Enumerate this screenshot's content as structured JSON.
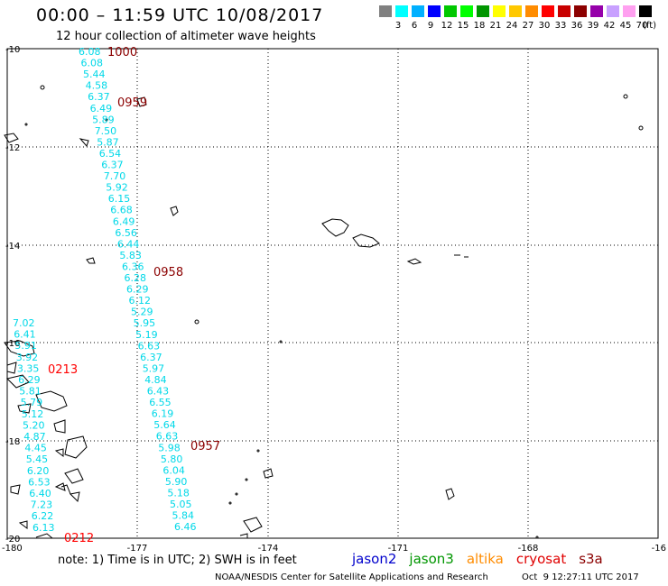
{
  "header": {
    "title": "00:00 – 11:59 UTC 10/08/2017",
    "subtitle": "12 hour collection of altimeter wave heights"
  },
  "colorbar": {
    "colors": [
      "#808080",
      "#00ffff",
      "#00b0ff",
      "#0000ff",
      "#00c800",
      "#00ff00",
      "#009600",
      "#ffff00",
      "#ffc800",
      "#ff8c00",
      "#ff0000",
      "#c80000",
      "#8c0000",
      "#9600aa",
      "#c8a0ff",
      "#ffa0f0",
      "#000000"
    ],
    "labels": [
      "3",
      "6",
      "9",
      "12",
      "15",
      "18",
      "21",
      "24",
      "27",
      "30",
      "33",
      "36",
      "39",
      "42",
      "45",
      "70"
    ],
    "unit": "(ft)"
  },
  "axes": {
    "lat_labels": [
      "-10",
      "-12",
      "-14",
      "-16",
      "-18",
      "-20"
    ],
    "lon_labels": [
      "-180",
      "-177",
      "-174",
      "-171",
      "-168",
      "-16"
    ]
  },
  "track_labels": [
    {
      "text": "1000",
      "color": "#8b0000"
    },
    {
      "text": "0959",
      "color": "#8b0000"
    },
    {
      "text": "0958",
      "color": "#8b0000"
    },
    {
      "text": "0957",
      "color": "#8b0000"
    },
    {
      "text": "0213",
      "color": "#ff0000"
    },
    {
      "text": "0212",
      "color": "#ff0000"
    }
  ],
  "wave_colors": {
    "cyan": "#00d8e8"
  },
  "track_a": [
    "6.08",
    "6.08",
    "5.44",
    "4.58",
    "6.37",
    "6.49",
    "5.89",
    "7.50",
    "5.87",
    "6.54",
    "6.37",
    "7.70",
    "5.92",
    "6.15",
    "6.68",
    "6.49",
    "6.56",
    "6.44",
    "5.83",
    "6.36",
    "6.28",
    "6.29",
    "6.12",
    "5.29",
    "5.95",
    "5.19",
    "6.63",
    "6.37",
    "5.97",
    "4.84",
    "6.43",
    "6.55",
    "6.19",
    "5.64",
    "6.63",
    "5.98",
    "5.80",
    "6.04",
    "5.90",
    "5.18",
    "5.05",
    "5.84",
    "6.46"
  ],
  "track_b": [
    "7.02",
    "6.41",
    "5.91",
    "3.92",
    "3.35",
    "6.29",
    "5.81",
    "5.79",
    "5.12",
    "5.20",
    "4.87",
    "4.45",
    "5.45",
    "6.20",
    "6.53",
    "6.40",
    "7.23",
    "6.22",
    "6.13"
  ],
  "footer": {
    "note": "note: 1) Time is in UTC; 2) SWH is in feet",
    "satellites": [
      {
        "name": "jason2",
        "color": "#0000cc"
      },
      {
        "name": "jason3",
        "color": "#009600"
      },
      {
        "name": "altika",
        "color": "#ff8c00"
      },
      {
        "name": "cryosat",
        "color": "#e00000"
      },
      {
        "name": "s3a",
        "color": "#8b0000"
      }
    ],
    "credit": "NOAA/NESDIS Center for Satellite Applications and Research",
    "timestamp": "Oct  9 12:27:11 UTC 2017"
  }
}
